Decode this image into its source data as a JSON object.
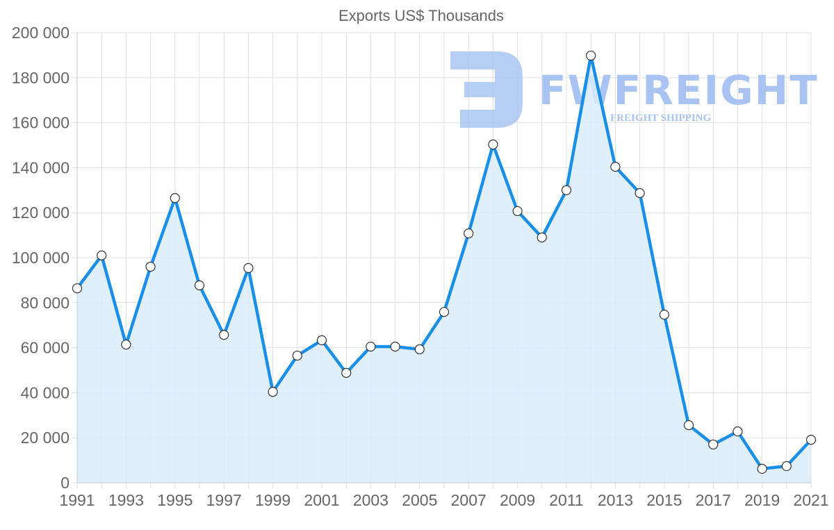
{
  "chart_data": {
    "type": "area",
    "title": "Exports US$ Thousands",
    "xlabel": "",
    "ylabel": "",
    "ylim": [
      0,
      200000
    ],
    "y_ticks": [
      "0",
      "20 000",
      "40 000",
      "60 000",
      "80 000",
      "100 000",
      "120 000",
      "140 000",
      "160 000",
      "180 000",
      "200 000"
    ],
    "x_tick_labels": [
      "1991",
      "1993",
      "1995",
      "1997",
      "1999",
      "2001",
      "2003",
      "2005",
      "2007",
      "2009",
      "2011",
      "2013",
      "2015",
      "2017",
      "2019",
      "2021"
    ],
    "grid": true,
    "legend": "none",
    "x": [
      1991,
      1992,
      1993,
      1994,
      1995,
      1996,
      1997,
      1998,
      1999,
      2000,
      2001,
      2002,
      2003,
      2004,
      2005,
      2006,
      2007,
      2008,
      2009,
      2010,
      2011,
      2012,
      2013,
      2014,
      2015,
      2016,
      2017,
      2018,
      2019,
      2020,
      2021
    ],
    "series": [
      {
        "name": "Exports",
        "values": [
          86400,
          101000,
          61400,
          96000,
          126500,
          87700,
          65700,
          95400,
          40400,
          56500,
          63300,
          48800,
          60500,
          60500,
          59300,
          75900,
          110800,
          150300,
          120700,
          109000,
          130000,
          189800,
          140400,
          128700,
          74700,
          25600,
          17000,
          22800,
          6200,
          7400,
          19100
        ]
      }
    ],
    "colors": {
      "line": "#1a8fe8",
      "fill": "#d9ecfc",
      "point_fill": "#ffffff",
      "point_stroke": "#333333",
      "grid": "#e0e0e0",
      "text": "#666666"
    }
  },
  "watermark": {
    "brand": "FWFREIGHT",
    "tagline": "FREIGHT SHIPPING",
    "color": "#a9c4f2"
  }
}
